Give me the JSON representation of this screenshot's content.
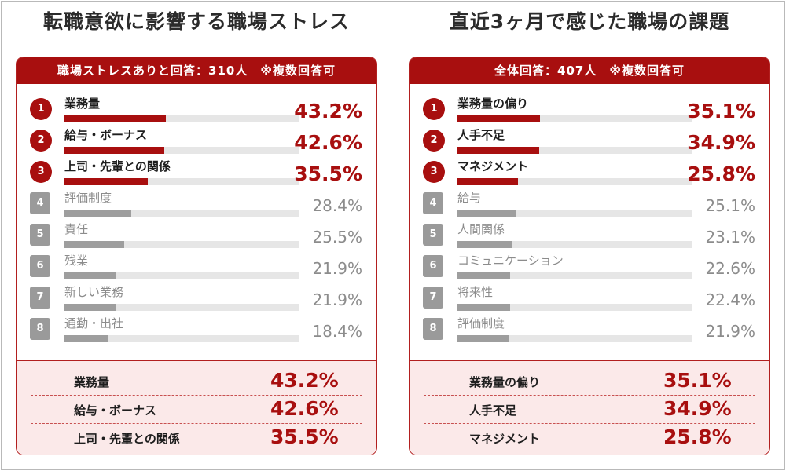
{
  "left": {
    "title": "転職意欲に影響する職場ストレス",
    "header": "職場ストレスありと回答：310人　※複数回答可",
    "summary": [
      {
        "label": "業務量",
        "value": "43.2%"
      },
      {
        "label": "給与・ボーナス",
        "value": "42.6%"
      },
      {
        "label": "上司・先輩との関係",
        "value": "35.5%"
      }
    ]
  },
  "right": {
    "title": "直近3ヶ月で感じた職場の課題",
    "header": "全体回答：407人　※複数回答可",
    "summary": [
      {
        "label": "業務量の偏り",
        "value": "35.1%"
      },
      {
        "label": "人手不足",
        "value": "34.9%"
      },
      {
        "label": "マネジメント",
        "value": "25.8%"
      }
    ]
  },
  "colors": {
    "accent": "#a80f0f",
    "summary_bg": "#fbe9e9",
    "muted_bar": "#9e9e9e",
    "track": "#e6e6e6"
  },
  "chart_data": [
    {
      "type": "bar",
      "orientation": "horizontal",
      "title": "転職意欲に影響する職場ストレス",
      "subtitle": "職場ストレスありと回答：310人　※複数回答可",
      "ranks": [
        "1",
        "2",
        "3",
        "4",
        "5",
        "6",
        "7",
        "8"
      ],
      "categories": [
        "業務量",
        "給与・ボーナス",
        "上司・先輩との関係",
        "評価制度",
        "責任",
        "残業",
        "新しい業務",
        "通勤・出社"
      ],
      "values": [
        43.2,
        42.6,
        35.5,
        28.4,
        25.5,
        21.9,
        21.9,
        18.4
      ],
      "value_labels": [
        "43.2%",
        "42.6%",
        "35.5%",
        "28.4%",
        "25.5%",
        "21.9%",
        "21.9%",
        "18.4%"
      ],
      "highlight_top": 3,
      "xlim": [
        0,
        100
      ]
    },
    {
      "type": "bar",
      "orientation": "horizontal",
      "title": "直近3ヶ月で感じた職場の課題",
      "subtitle": "全体回答：407人　※複数回答可",
      "ranks": [
        "1",
        "2",
        "3",
        "4",
        "5",
        "6",
        "7",
        "8"
      ],
      "categories": [
        "業務量の偏り",
        "人手不足",
        "マネジメント",
        "給与",
        "人間関係",
        "コミュニケーション",
        "将来性",
        "評価制度"
      ],
      "values": [
        35.1,
        34.9,
        25.8,
        25.1,
        23.1,
        22.6,
        22.4,
        21.9
      ],
      "value_labels": [
        "35.1%",
        "34.9%",
        "25.8%",
        "25.1%",
        "23.1%",
        "22.6%",
        "22.4%",
        "21.9%"
      ],
      "highlight_top": 3,
      "xlim": [
        0,
        100
      ]
    }
  ]
}
